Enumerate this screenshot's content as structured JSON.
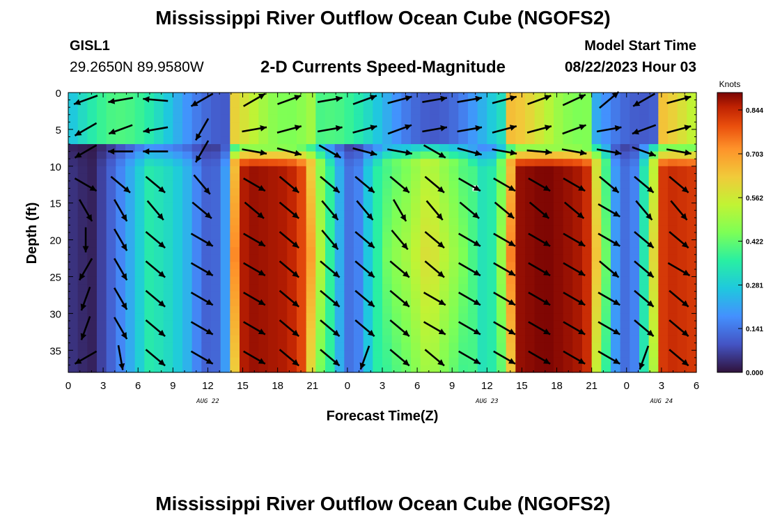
{
  "header": {
    "title": "Mississippi River Outflow Ocean Cube (NGOFS2)",
    "station_id": "GISL1",
    "station_coords": "29.2650N  89.9580W",
    "subtitle": "2-D Currents Speed-Magnitude",
    "model_start_label": "Model Start Time",
    "model_start_value": "08/22/2023 Hour 03"
  },
  "footer": {
    "title": "Mississippi River Outflow Ocean Cube (NGOFS2)"
  },
  "chart_data": {
    "type": "heatmap",
    "ylabel": "Depth (ft)",
    "xlabel": "Forecast Time(Z)",
    "x_range_hours": [
      0,
      54
    ],
    "ylim": [
      0,
      38
    ],
    "y_inverted": true,
    "x_tick_labels": [
      "0",
      "3",
      "6",
      "9",
      "12",
      "15",
      "18",
      "21",
      "0",
      "3",
      "6",
      "9",
      "12",
      "15",
      "18",
      "21",
      "0",
      "3",
      "6"
    ],
    "y_ticks": [
      0,
      5,
      10,
      15,
      20,
      25,
      30,
      35
    ],
    "date_labels": [
      {
        "label": "AUG 22",
        "hour": 12
      },
      {
        "label": "AUG 23",
        "hour": 36
      },
      {
        "label": "AUG 24",
        "hour": 51
      }
    ],
    "colorbar": {
      "unit": "Knots",
      "ticks": [
        "0.000",
        "0.141",
        "0.281",
        "0.422",
        "0.562",
        "0.703",
        "0.844"
      ],
      "range": [
        0.0,
        0.9
      ],
      "colormap": "turbo"
    },
    "speed_time_profile": {
      "hours": [
        0,
        2,
        3.5,
        5,
        7,
        9,
        10.5,
        11.5,
        12.5,
        13.5,
        14.5,
        16,
        19,
        20.5,
        22,
        23.5,
        24.5,
        26,
        27.5,
        29,
        31,
        33,
        34,
        36,
        37,
        38.5,
        41,
        43,
        44.5,
        46,
        47,
        48,
        49,
        50,
        51,
        52,
        54
      ],
      "deep_speed": [
        0.05,
        0.02,
        0.1,
        0.2,
        0.35,
        0.3,
        0.22,
        0.12,
        0.1,
        0.2,
        0.85,
        0.88,
        0.86,
        0.78,
        0.45,
        0.2,
        0.1,
        0.3,
        0.45,
        0.5,
        0.6,
        0.5,
        0.45,
        0.3,
        0.42,
        0.88,
        0.9,
        0.88,
        0.86,
        0.5,
        0.2,
        0.12,
        0.18,
        0.5,
        0.82,
        0.84,
        0.82
      ]
    },
    "arrow_grid": {
      "time_hours": [
        1.5,
        4.5,
        7.5,
        11.5,
        16,
        19,
        22.5,
        25.5,
        28.5,
        31.5,
        34.5,
        37.5,
        40.5,
        43.5,
        46.5,
        49.5,
        52.5
      ],
      "depth_ft": [
        1,
        5,
        8,
        12.5,
        16,
        20,
        24,
        28,
        32,
        36
      ],
      "directions_deg": [
        [
          200,
          190,
          175,
          210,
          30,
          20,
          10,
          20,
          15,
          10,
          10,
          15,
          20,
          25,
          40,
          210,
          15
        ],
        [
          210,
          200,
          190,
          240,
          10,
          15,
          10,
          15,
          20,
          10,
          10,
          15,
          15,
          20,
          10,
          200,
          15
        ],
        [
          210,
          180,
          180,
          240,
          350,
          345,
          330,
          345,
          350,
          330,
          345,
          350,
          355,
          350,
          350,
          340,
          350
        ],
        [
          330,
          320,
          320,
          310,
          330,
          320,
          320,
          320,
          320,
          320,
          330,
          330,
          330,
          330,
          320,
          320,
          320
        ],
        [
          300,
          300,
          310,
          320,
          320,
          320,
          310,
          310,
          300,
          310,
          320,
          320,
          320,
          320,
          330,
          310,
          310
        ],
        [
          270,
          300,
          320,
          330,
          330,
          320,
          310,
          320,
          310,
          320,
          330,
          330,
          330,
          330,
          330,
          320,
          320
        ],
        [
          240,
          300,
          320,
          330,
          330,
          320,
          320,
          320,
          320,
          320,
          330,
          330,
          330,
          330,
          320,
          320,
          330
        ],
        [
          250,
          300,
          320,
          330,
          330,
          320,
          320,
          320,
          320,
          330,
          330,
          330,
          330,
          330,
          330,
          320,
          320
        ],
        [
          250,
          300,
          320,
          330,
          330,
          320,
          320,
          320,
          320,
          330,
          330,
          330,
          330,
          330,
          330,
          320,
          320
        ],
        [
          210,
          280,
          320,
          330,
          330,
          320,
          320,
          250,
          320,
          320,
          330,
          330,
          330,
          330,
          330,
          250,
          320
        ]
      ]
    },
    "marker": {
      "hour": 35,
      "depth_ft": 13
    }
  }
}
